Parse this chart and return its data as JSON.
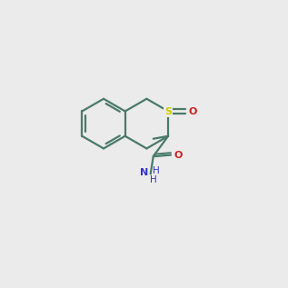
{
  "bg_color": "#ebebeb",
  "bond_color": "#4a7a6a",
  "sulfur_color": "#cccc00",
  "oxygen_color": "#cc2222",
  "nitrogen_color": "#3333cc",
  "lw": 1.6,
  "scale": 0.092,
  "bx": 0.35,
  "by": 0.575
}
